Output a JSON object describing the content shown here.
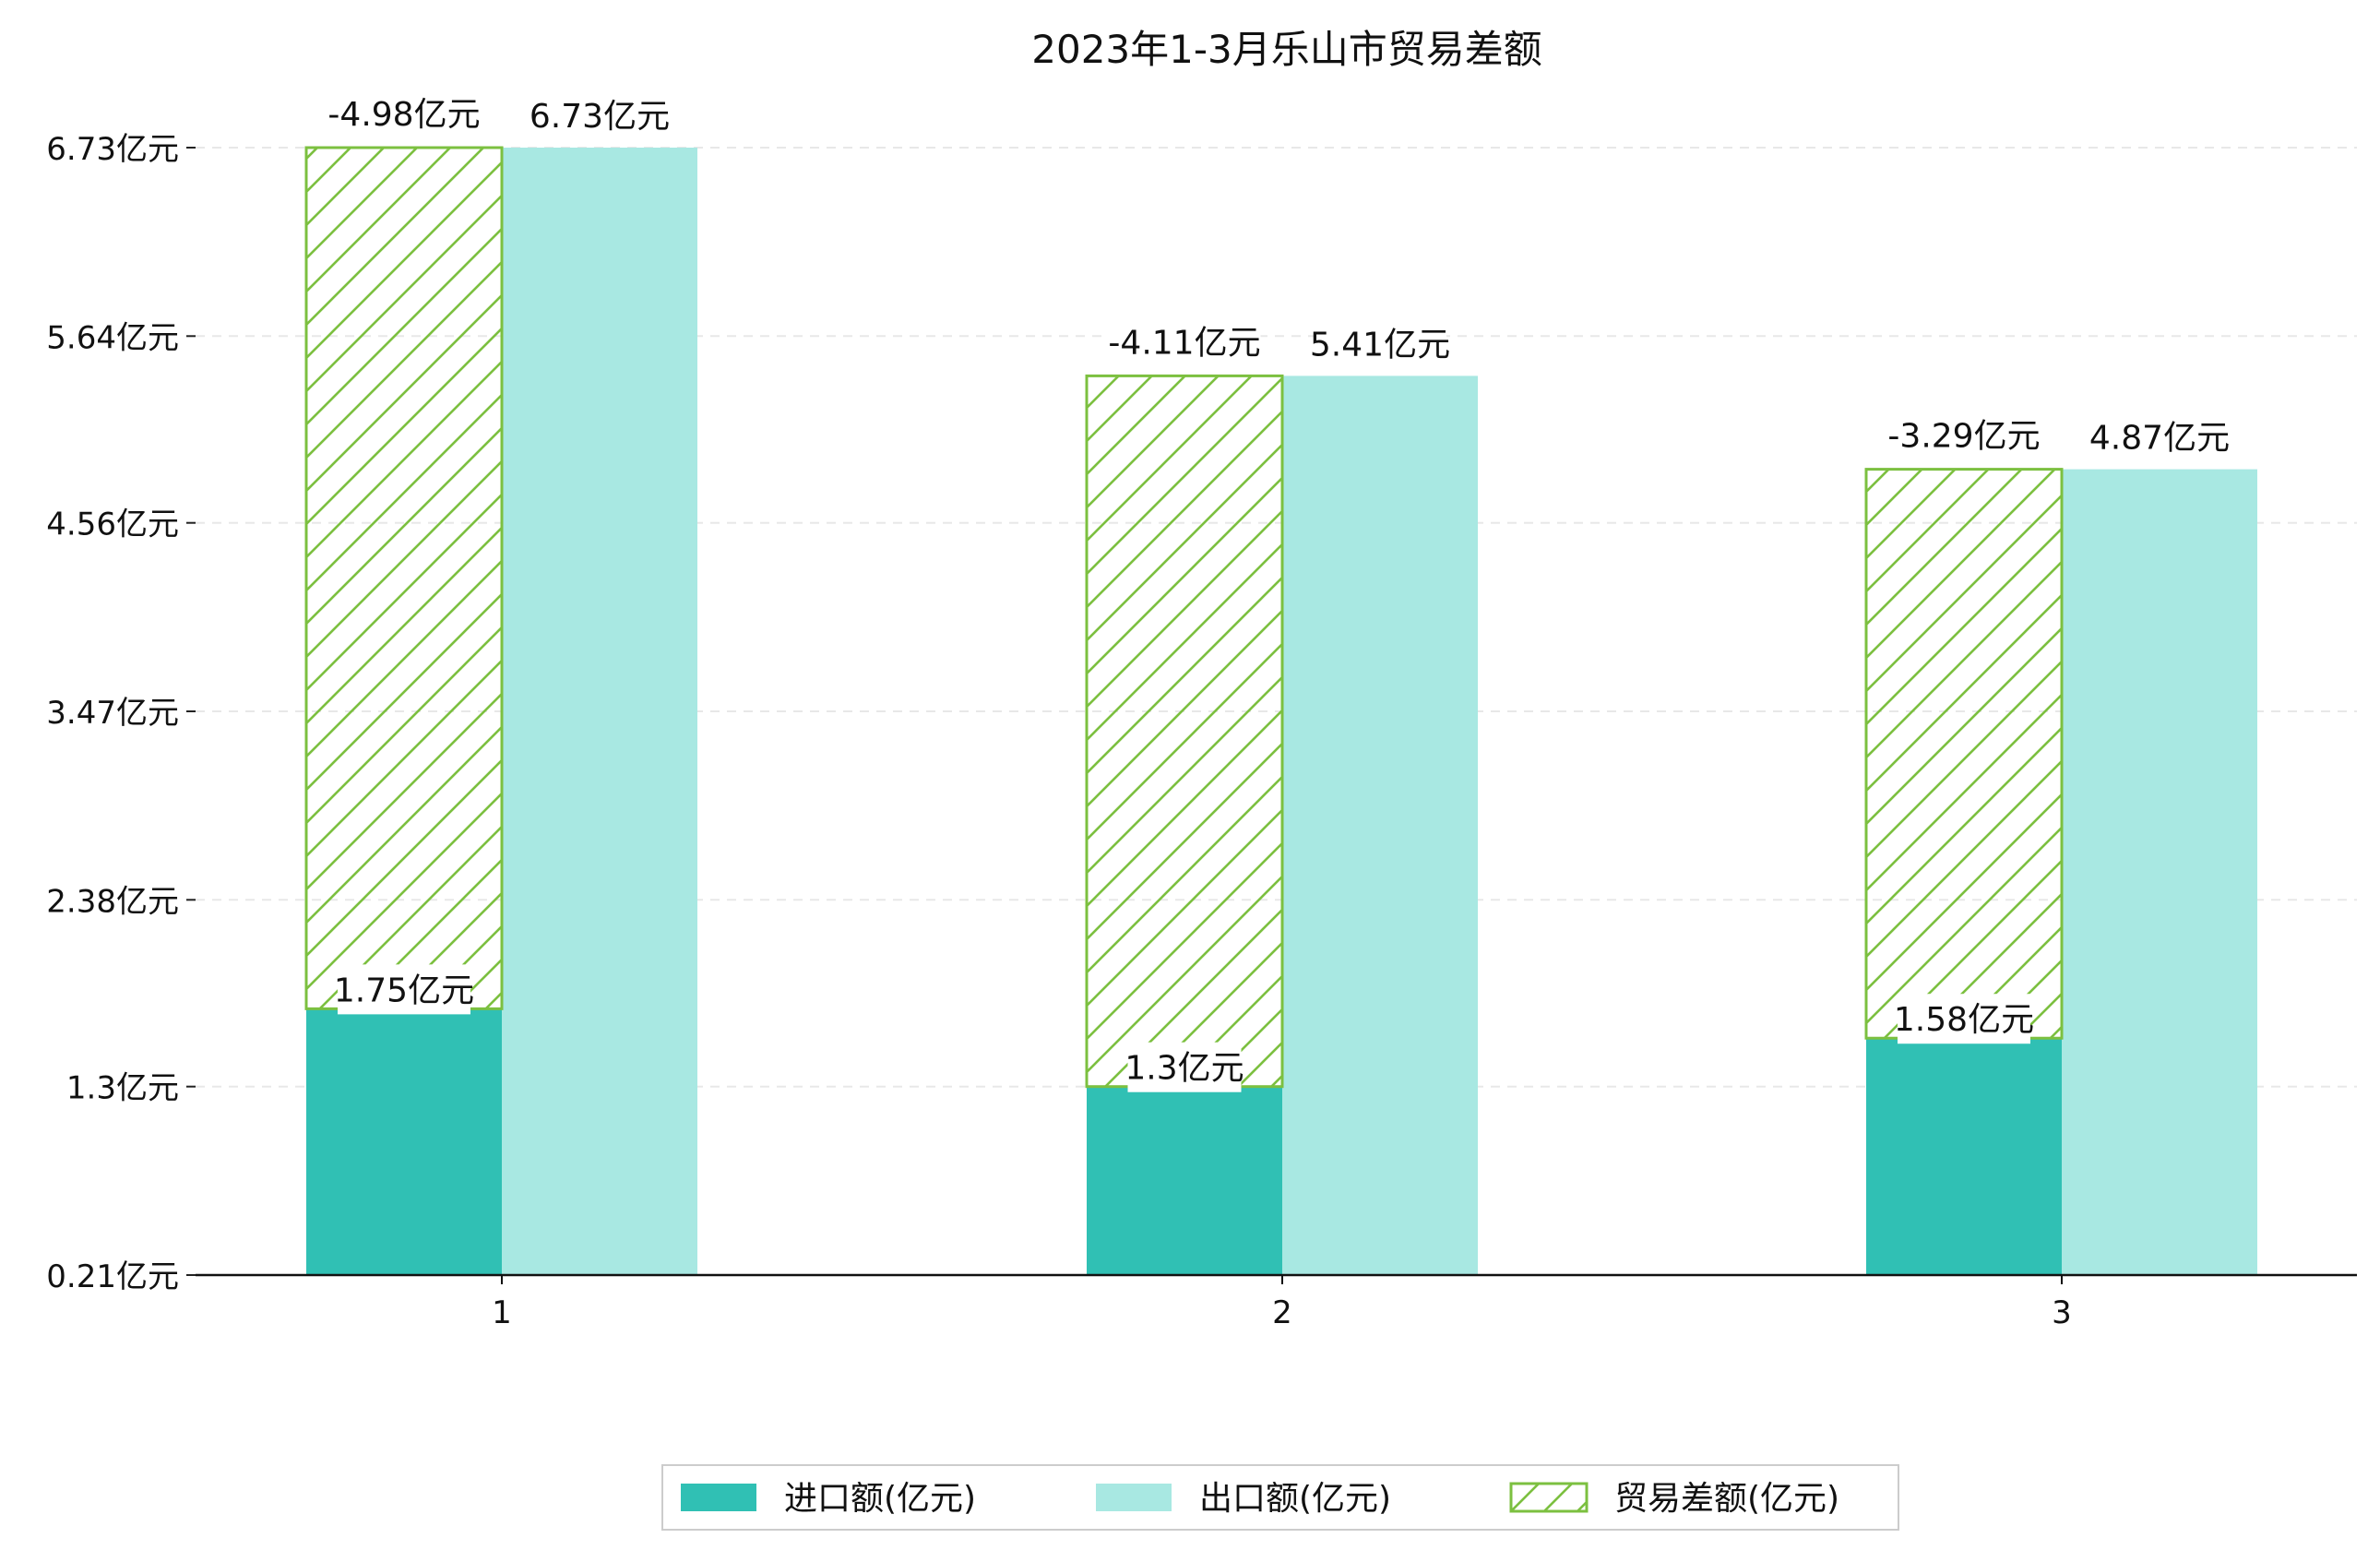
{
  "chart_data": {
    "type": "bar",
    "title": "2023年1-3月乐山市贸易差额",
    "categories": [
      "1",
      "2",
      "3"
    ],
    "series": [
      {
        "name": "进口额(亿元)",
        "color": "#30c0b4",
        "values": [
          1.75,
          1.3,
          1.58
        ],
        "labels": [
          "1.75亿元",
          "1.3亿元",
          "1.58亿元"
        ]
      },
      {
        "name": "出口额(亿元)",
        "color": "#a8e8e2",
        "values": [
          6.73,
          5.41,
          4.87
        ],
        "labels": [
          "6.73亿元",
          "5.41亿元",
          "4.87亿元"
        ]
      },
      {
        "name": "贸易差额(亿元)",
        "color": "#7cc040",
        "hatch": "diagonal",
        "values": [
          -4.98,
          -4.11,
          -3.29
        ],
        "labels": [
          "-4.98亿元",
          "-4.11亿元",
          "-3.29亿元"
        ]
      }
    ],
    "yticks": [
      0.21,
      1.3,
      2.38,
      3.47,
      4.56,
      5.64,
      6.73
    ],
    "ytick_labels": [
      "0.21亿元",
      "1.3亿元",
      "2.38亿元",
      "3.47亿元",
      "4.56亿元",
      "5.64亿元",
      "6.73亿元"
    ],
    "ylim": [
      0.21,
      6.73
    ],
    "xlabel": "",
    "ylabel": "",
    "grid": "y-dashed",
    "legend": "bottom-center"
  }
}
